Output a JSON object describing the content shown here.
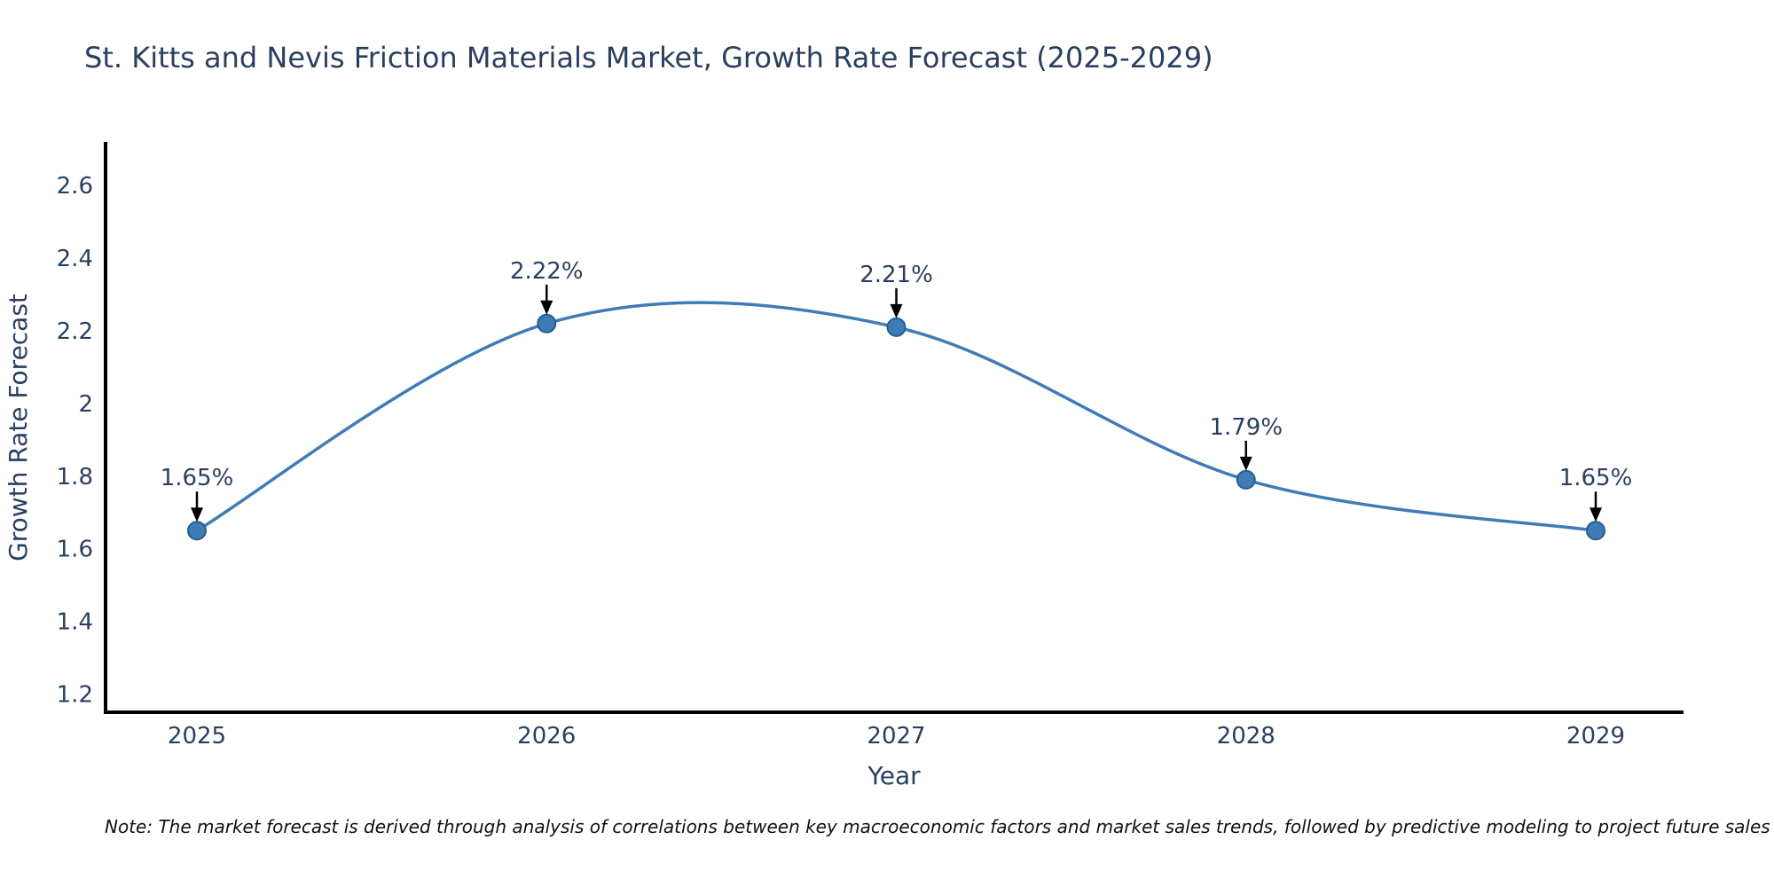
{
  "chart_data": {
    "type": "line",
    "title": "St. Kitts and Nevis Friction Materials Market, Growth Rate Forecast (2025-2029)",
    "xlabel": "Year",
    "ylabel": "Growth Rate Forecast",
    "x": [
      2025,
      2026,
      2027,
      2028,
      2029
    ],
    "series": [
      {
        "name": "Growth Rate Forecast",
        "values": [
          1.65,
          2.22,
          2.21,
          1.79,
          1.65
        ],
        "point_labels": [
          "1.65%",
          "2.22%",
          "2.21%",
          "1.79%",
          "1.65%"
        ]
      }
    ],
    "yticks": [
      "1.2",
      "1.4",
      "1.6",
      "1.8",
      "2",
      "2.2",
      "2.4",
      "2.6"
    ],
    "ytick_values": [
      1.2,
      1.4,
      1.6,
      1.8,
      2.0,
      2.2,
      2.4,
      2.6
    ],
    "ylim": [
      1.15,
      2.72
    ],
    "line_shape": "spline",
    "grid": false,
    "legend": "none",
    "colors": {
      "line": "#3f7cb6",
      "marker_fill": "#3f7cb6",
      "marker_edge": "#255f8e",
      "axis": "#000000",
      "label_text": "#2a3f5f",
      "annotation_arrow": "#000000"
    },
    "note": "Note: The market forecast is derived through analysis of correlations between key macroeconomic factors and market sales trends, followed by predictive modeling to project future sales"
  }
}
